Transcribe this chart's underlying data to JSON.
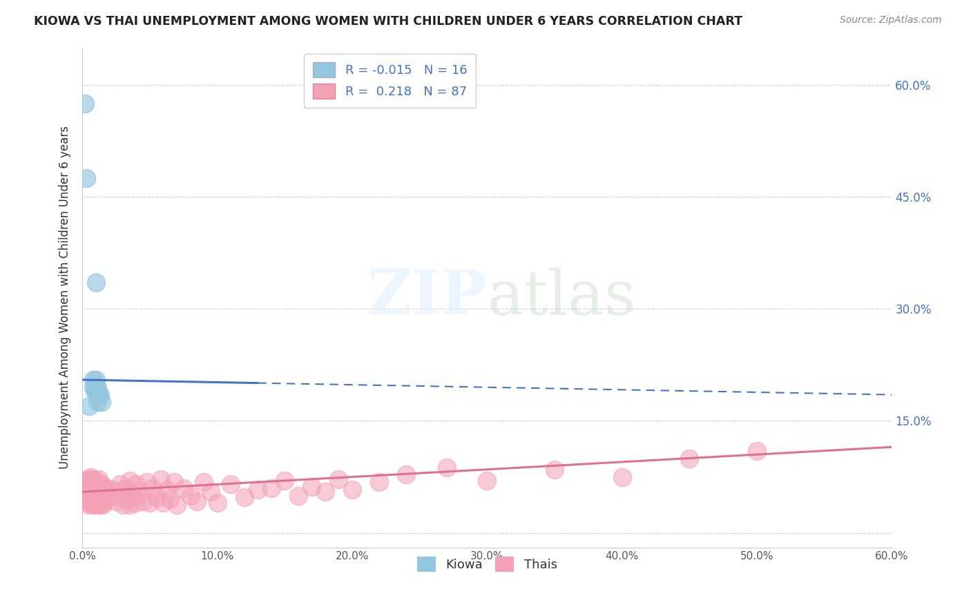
{
  "title": "KIOWA VS THAI UNEMPLOYMENT AMONG WOMEN WITH CHILDREN UNDER 6 YEARS CORRELATION CHART",
  "source": "Source: ZipAtlas.com",
  "ylabel": "Unemployment Among Women with Children Under 6 years",
  "xmin": 0.0,
  "xmax": 0.6,
  "ymin": -0.02,
  "ymax": 0.65,
  "xtick_vals": [
    0.0,
    0.1,
    0.2,
    0.3,
    0.4,
    0.5,
    0.6
  ],
  "xtick_labels": [
    "0.0%",
    "10.0%",
    "20.0%",
    "30.0%",
    "40.0%",
    "50.0%",
    "60.0%"
  ],
  "ytick_vals": [
    0.0,
    0.15,
    0.3,
    0.45,
    0.6
  ],
  "ytick_labels": [
    "",
    "15.0%",
    "30.0%",
    "45.0%",
    "60.0%"
  ],
  "kiowa_R": -0.015,
  "kiowa_N": 16,
  "thai_R": 0.218,
  "thai_N": 87,
  "kiowa_color": "#92c5de",
  "thai_color": "#f4a0b5",
  "kiowa_line_color": "#4472c4",
  "thai_line_color": "#e07090",
  "background_color": "#ffffff",
  "grid_color": "#cccccc",
  "legend_kiowa": "Kiowa",
  "legend_thai": "Thais",
  "kiowa_line_y_start": 0.205,
  "kiowa_line_y_end": 0.185,
  "thai_line_y_start": 0.055,
  "thai_line_y_end": 0.115,
  "kiowa_x": [
    0.002,
    0.003,
    0.008,
    0.01,
    0.008,
    0.009,
    0.01,
    0.011,
    0.012,
    0.01,
    0.012,
    0.013,
    0.01,
    0.011,
    0.014,
    0.005
  ],
  "kiowa_y": [
    0.575,
    0.475,
    0.205,
    0.205,
    0.195,
    0.19,
    0.195,
    0.195,
    0.185,
    0.19,
    0.185,
    0.185,
    0.335,
    0.175,
    0.175,
    0.17
  ],
  "thai_x": [
    0.002,
    0.002,
    0.003,
    0.003,
    0.004,
    0.004,
    0.004,
    0.005,
    0.005,
    0.005,
    0.006,
    0.006,
    0.006,
    0.007,
    0.007,
    0.007,
    0.008,
    0.008,
    0.008,
    0.009,
    0.009,
    0.01,
    0.01,
    0.01,
    0.011,
    0.011,
    0.012,
    0.012,
    0.012,
    0.013,
    0.013,
    0.014,
    0.014,
    0.015,
    0.015,
    0.016,
    0.017,
    0.018,
    0.02,
    0.022,
    0.025,
    0.028,
    0.03,
    0.03,
    0.032,
    0.033,
    0.035,
    0.035,
    0.038,
    0.04,
    0.04,
    0.042,
    0.045,
    0.048,
    0.05,
    0.052,
    0.055,
    0.058,
    0.06,
    0.063,
    0.065,
    0.068,
    0.07,
    0.075,
    0.08,
    0.085,
    0.09,
    0.095,
    0.1,
    0.11,
    0.12,
    0.13,
    0.14,
    0.15,
    0.16,
    0.17,
    0.18,
    0.19,
    0.2,
    0.22,
    0.24,
    0.27,
    0.3,
    0.35,
    0.4,
    0.45,
    0.5
  ],
  "thai_y": [
    0.055,
    0.07,
    0.048,
    0.065,
    0.04,
    0.058,
    0.072,
    0.038,
    0.055,
    0.07,
    0.042,
    0.06,
    0.075,
    0.04,
    0.058,
    0.072,
    0.038,
    0.055,
    0.068,
    0.042,
    0.06,
    0.038,
    0.052,
    0.07,
    0.04,
    0.058,
    0.042,
    0.055,
    0.072,
    0.038,
    0.058,
    0.04,
    0.065,
    0.038,
    0.06,
    0.042,
    0.055,
    0.06,
    0.048,
    0.058,
    0.042,
    0.065,
    0.038,
    0.058,
    0.045,
    0.06,
    0.038,
    0.07,
    0.05,
    0.04,
    0.065,
    0.055,
    0.042,
    0.068,
    0.04,
    0.06,
    0.048,
    0.072,
    0.04,
    0.058,
    0.045,
    0.068,
    0.038,
    0.06,
    0.05,
    0.042,
    0.068,
    0.055,
    0.04,
    0.065,
    0.048,
    0.058,
    0.06,
    0.07,
    0.05,
    0.062,
    0.055,
    0.072,
    0.058,
    0.068,
    0.078,
    0.088,
    0.07,
    0.085,
    0.075,
    0.1,
    0.11
  ]
}
